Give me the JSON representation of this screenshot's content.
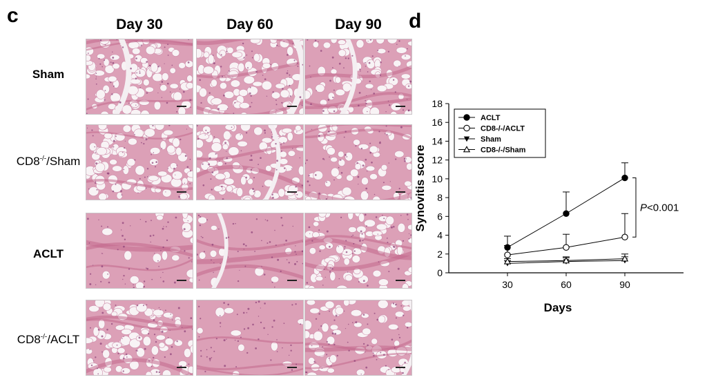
{
  "panel_c": {
    "letter": "c",
    "columns": [
      "Day 30",
      "Day 60",
      "Day 90"
    ],
    "rows": [
      {
        "pre": "Sham",
        "sup": "",
        "post": ""
      },
      {
        "pre": "CD8",
        "sup": "-/-",
        "post": "/Sham"
      },
      {
        "pre": "ACLT",
        "sup": "",
        "post": ""
      },
      {
        "pre": "CD8",
        "sup": "-/-",
        "post": "/ACLT"
      }
    ],
    "tiles": [
      [
        "adipose-fat",
        "adipose-fat",
        "adipose-fibrous"
      ],
      [
        "adipose-cells",
        "adipose-fat",
        "adipose-cartilage"
      ],
      [
        "fibrous-synovium",
        "fibrous-cleft",
        "cellular-adipose"
      ],
      [
        "adipose-strand",
        "fibrous-dense",
        "fibrous-adipose"
      ]
    ]
  },
  "panel_d": {
    "letter": "d",
    "annotation": {
      "p_label": "P",
      "p_value": "<0.001"
    }
  },
  "chart_data": {
    "type": "line",
    "x": [
      30,
      60,
      90
    ],
    "xlabel": "Days",
    "ylabel": "Synovitis score",
    "ylim": [
      0,
      18
    ],
    "xlim": [
      0,
      120
    ],
    "yticks": [
      0,
      2,
      4,
      6,
      8,
      10,
      12,
      14,
      16,
      18
    ],
    "xticks": [
      30,
      60,
      90
    ],
    "grid": false,
    "legend_position": "top-left",
    "series": [
      {
        "name": "ACLT",
        "values": [
          2.7,
          6.3,
          10.1
        ],
        "errors": [
          1.2,
          2.3,
          1.6
        ],
        "marker": "filled-circle"
      },
      {
        "name": "CD8-/-/ACLT",
        "values": [
          1.9,
          2.7,
          3.8
        ],
        "errors": [
          1.0,
          1.4,
          2.5
        ],
        "marker": "open-circle"
      },
      {
        "name": "Sham",
        "values": [
          1.0,
          1.2,
          1.3
        ],
        "errors": [
          0.3,
          0.4,
          0.4
        ],
        "marker": "filled-triangle-down"
      },
      {
        "name": "CD8-/-/Sham",
        "values": [
          1.2,
          1.3,
          1.5
        ],
        "errors": [
          0.3,
          0.4,
          0.5
        ],
        "marker": "open-triangle-up"
      }
    ],
    "colors": {
      "line": "#000000",
      "tissue_pink": "#d98aa8",
      "fat_white": "#f7f1f4"
    }
  }
}
